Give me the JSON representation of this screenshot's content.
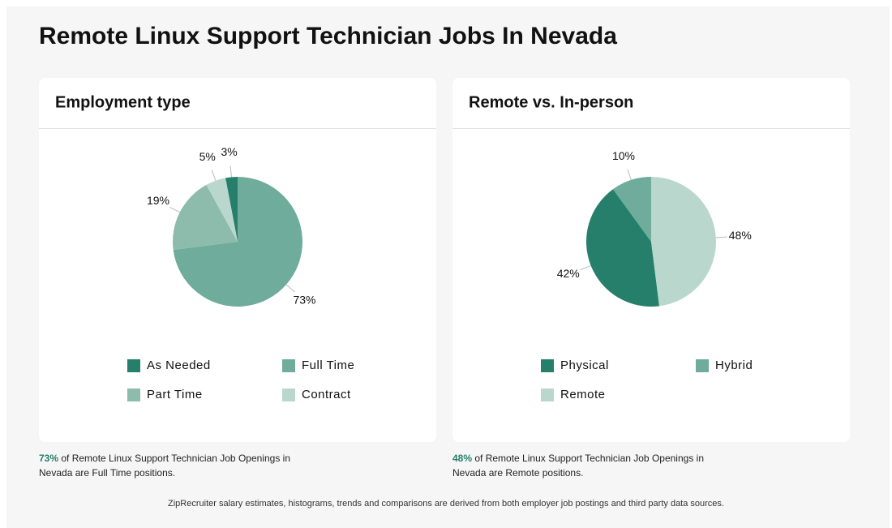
{
  "title": "Remote Linux Support Technician Jobs In Nevada",
  "chart_data": [
    {
      "type": "pie",
      "title": "Employment type",
      "categories": [
        "As Needed",
        "Full Time",
        "Part Time",
        "Contract"
      ],
      "values": [
        3,
        73,
        19,
        5
      ],
      "value_labels": [
        "3%",
        "73%",
        "19%",
        "5%"
      ],
      "colors": [
        "#267f6a",
        "#6fac9b",
        "#8dbcac",
        "#bad7ce"
      ]
    },
    {
      "type": "pie",
      "title": "Remote vs. In-person",
      "categories": [
        "Physical",
        "Hybrid",
        "Remote"
      ],
      "values": [
        42,
        10,
        48
      ],
      "value_labels": [
        "42%",
        "10%",
        "48%"
      ],
      "colors": [
        "#267f6a",
        "#6fac9b",
        "#bad7ce"
      ]
    }
  ],
  "captions": [
    {
      "highlight": "73%",
      "text": " of Remote Linux Support Technician Job Openings in Nevada are Full Time positions."
    },
    {
      "highlight": "48%",
      "text": " of Remote Linux Support Technician Job Openings in Nevada are Remote positions."
    }
  ],
  "footer": "ZipRecruiter salary estimates, histograms, trends and comparisons are derived from both employer job postings and third party data sources."
}
